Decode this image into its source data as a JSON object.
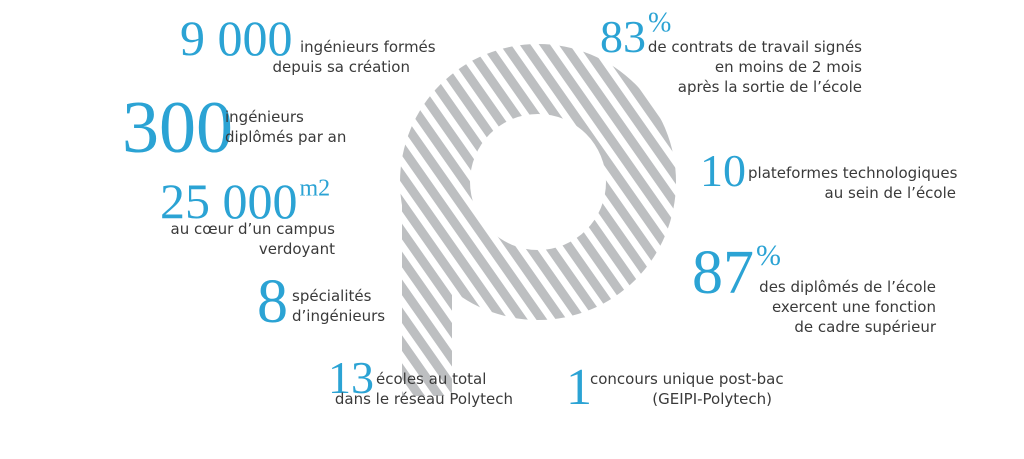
{
  "stats": [
    {
      "number": "9 000",
      "lines": [
        "ingénieurs formés",
        "depuis sa création"
      ]
    },
    {
      "number": "300",
      "lines": [
        "ingénieurs",
        "diplômés par an"
      ]
    },
    {
      "number": "25 000",
      "unit": "m2",
      "lines": [
        "au cœur d’un campus",
        "verdoyant"
      ]
    },
    {
      "number": "8",
      "lines": [
        "spécialités",
        "d’ingénieurs"
      ]
    },
    {
      "number": "13",
      "lines": [
        "écoles au total",
        "dans le réseau Polytech"
      ]
    },
    {
      "number": "1",
      "lines": [
        "concours unique post-bac",
        "(GEIPI-Polytech)"
      ]
    },
    {
      "number": "87",
      "unit": "%",
      "lines": [
        "des diplômés de l’école",
        "exercent une fonction",
        "de cadre supérieur"
      ]
    },
    {
      "number": "10",
      "lines": [
        "plateformes technologiques",
        "au sein de l’école"
      ]
    },
    {
      "number": "83",
      "unit": "%",
      "lines": [
        "de contrats de travail signés",
        "en moins de 2 mois",
        "après la sortie de l’école"
      ]
    }
  ]
}
